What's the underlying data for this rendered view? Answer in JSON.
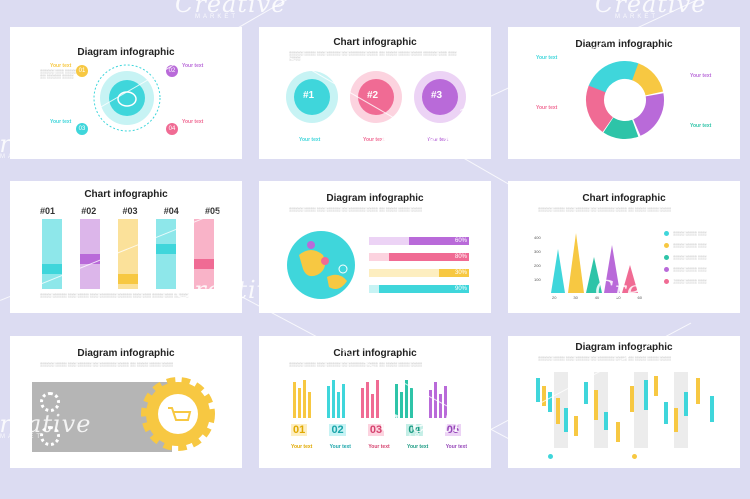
{
  "slides": [
    {
      "title": "Diagram infographic",
      "your_text": "Your text",
      "nums": [
        "01",
        "02",
        "03",
        "04"
      ]
    },
    {
      "title": "Chart infographic",
      "your_text": "Your text",
      "badges": [
        "#1",
        "#2",
        "#3"
      ]
    },
    {
      "title": "Diagram infographic",
      "your_text": "Your text"
    },
    {
      "title": "Chart infographic",
      "labels": [
        "#01",
        "#02",
        "#03",
        "#04",
        "#05"
      ]
    },
    {
      "title": "Diagram infographic",
      "bars": [
        "60%",
        "80%",
        "30%",
        "90%"
      ]
    },
    {
      "title": "Chart infographic",
      "ticks_y": [
        "400",
        "300",
        "200",
        "100"
      ],
      "ticks_x": [
        "20",
        "30",
        "40",
        "50",
        "60"
      ]
    },
    {
      "title": "Diagram infographic"
    },
    {
      "title": "Chart infographic",
      "nums": [
        "01",
        "02",
        "03",
        "04",
        "05"
      ],
      "your_text": "Your text"
    },
    {
      "title": "Diagram infographic"
    }
  ],
  "watermark": {
    "main": "Creative",
    "sub": "MARKET"
  },
  "colors": {
    "cyan": "#3fd6db",
    "purple": "#b96ad9",
    "pink": "#f06b94",
    "yellow": "#f7c842",
    "teal": "#2ec4a8",
    "gray": "#bdbdbd"
  }
}
